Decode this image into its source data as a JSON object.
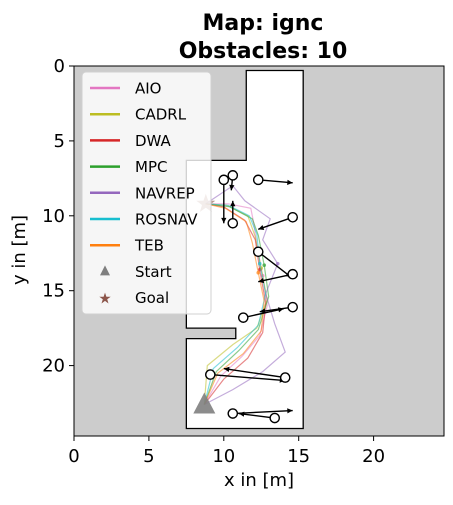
{
  "chart_data": {
    "type": "line",
    "title_line1": "Map: ignc",
    "title_line2": "Obstacles: 10",
    "xlabel": "x in [m]",
    "ylabel": "y in [m]",
    "xlim": [
      0,
      24.7
    ],
    "ylim": [
      24.7,
      0
    ],
    "xticks": [
      0,
      5,
      10,
      15,
      20
    ],
    "yticks": [
      0,
      5,
      10,
      15,
      20
    ],
    "y_inverted": true,
    "grid": false,
    "legend_position": "top-left",
    "colors": {
      "background": "#cccccc",
      "free_space": "#ffffff",
      "AIO": "#e377c2",
      "CADRL": "#bcbd22",
      "DWA": "#d62728",
      "MPC": "#2ca02c",
      "NAVREP": "#9467bd",
      "ROSNAV": "#17becf",
      "TEB": "#ff7f0e",
      "Start": "#7f7f7f",
      "Goal": "#8c564b"
    },
    "legend": [
      "AIO",
      "CADRL",
      "DWA",
      "MPC",
      "NAVREP",
      "ROSNAV",
      "TEB",
      "Start",
      "Goal"
    ],
    "map_free_space": [
      [
        11.5,
        0.3
      ],
      [
        15.3,
        0.3
      ],
      [
        15.3,
        24.2
      ],
      [
        7.5,
        24.2
      ],
      [
        7.5,
        18.2
      ],
      [
        10.8,
        18.2
      ],
      [
        10.8,
        17.5
      ],
      [
        7.5,
        17.5
      ],
      [
        7.5,
        6.3
      ],
      [
        11.5,
        6.3
      ],
      [
        11.5,
        0.3
      ]
    ],
    "start": [
      8.7,
      22.6
    ],
    "goal": [
      8.8,
      9.2
    ],
    "series": [
      {
        "name": "AIO",
        "x": [
          8.7,
          9.8,
          11.2,
          12.4,
          12.9,
          12.6,
          12.2,
          12.0,
          11.8,
          10.3,
          8.8
        ],
        "y": [
          22.6,
          20.7,
          19.4,
          18.0,
          16.0,
          14.0,
          12.0,
          10.5,
          9.5,
          9.2,
          9.2
        ]
      },
      {
        "name": "CADRL",
        "x": [
          8.7,
          8.9,
          10.6,
          12.2,
          12.9,
          12.5,
          12.1,
          11.6,
          10.2,
          8.8
        ],
        "y": [
          22.6,
          20.0,
          18.6,
          17.5,
          15.6,
          13.5,
          11.4,
          10.0,
          9.3,
          9.2
        ]
      },
      {
        "name": "DWA",
        "x": [
          8.7,
          10.0,
          11.6,
          12.6,
          12.8,
          12.4,
          12.1,
          11.4,
          10.0,
          8.8
        ],
        "y": [
          22.6,
          20.9,
          19.5,
          17.8,
          15.8,
          13.6,
          11.6,
          10.3,
          9.4,
          9.2
        ]
      },
      {
        "name": "MPC",
        "x": [
          8.7,
          9.5,
          11.0,
          12.3,
          13.0,
          12.7,
          12.3,
          11.9,
          10.4,
          8.8
        ],
        "y": [
          22.6,
          20.4,
          19.0,
          17.6,
          15.4,
          13.3,
          11.3,
          10.2,
          9.4,
          9.2
        ]
      },
      {
        "name": "NAVREP",
        "x": [
          8.7,
          10.6,
          12.6,
          14.1,
          13.4,
          12.8,
          13.6,
          12.6,
          13.1,
          11.4,
          10.6,
          8.8
        ],
        "y": [
          22.6,
          21.6,
          20.4,
          19.1,
          17.2,
          15.2,
          13.2,
          11.6,
          10.2,
          9.0,
          8.0,
          9.2
        ]
      },
      {
        "name": "ROSNAV",
        "x": [
          8.7,
          9.3,
          10.9,
          12.3,
          12.8,
          12.4,
          12.2,
          11.7,
          10.3,
          8.8
        ],
        "y": [
          22.6,
          20.2,
          18.8,
          17.3,
          15.2,
          13.2,
          11.2,
          10.0,
          9.3,
          9.2
        ]
      },
      {
        "name": "TEB",
        "x": [
          8.7,
          9.6,
          11.3,
          12.5,
          12.7,
          12.3,
          11.9,
          11.5,
          10.1,
          8.8
        ],
        "y": [
          22.6,
          20.5,
          19.2,
          17.7,
          15.7,
          13.8,
          11.8,
          10.4,
          9.5,
          9.2
        ]
      }
    ],
    "obstacles": [
      {
        "from": [
          12.3,
          7.6
        ],
        "to": [
          14.6,
          7.8
        ]
      },
      {
        "from": [
          10.6,
          7.3
        ],
        "to": [
          10.5,
          8.3
        ]
      },
      {
        "from": [
          10.0,
          7.6
        ],
        "to": [
          10.0,
          10.5
        ]
      },
      {
        "from": [
          10.6,
          10.5
        ],
        "to": [
          10.6,
          9.0
        ]
      },
      {
        "from": [
          14.6,
          10.1
        ],
        "to": [
          12.3,
          10.9
        ]
      },
      {
        "from": [
          12.3,
          12.4
        ],
        "to": [
          14.5,
          14.1
        ]
      },
      {
        "from": [
          14.6,
          13.9
        ],
        "to": [
          12.3,
          14.4
        ]
      },
      {
        "from": [
          14.6,
          16.1
        ],
        "to": [
          12.4,
          16.4
        ]
      },
      {
        "from": [
          11.3,
          16.8
        ],
        "to": [
          14.0,
          16.2
        ]
      },
      {
        "from": [
          9.1,
          20.6
        ],
        "to": [
          14.1,
          21.0
        ]
      },
      {
        "from": [
          14.1,
          20.8
        ],
        "to": [
          10.0,
          20.2
        ]
      },
      {
        "from": [
          10.6,
          23.2
        ],
        "to": [
          14.6,
          23.0
        ]
      },
      {
        "from": [
          13.4,
          23.5
        ],
        "to": [
          11.0,
          23.2
        ]
      }
    ]
  }
}
